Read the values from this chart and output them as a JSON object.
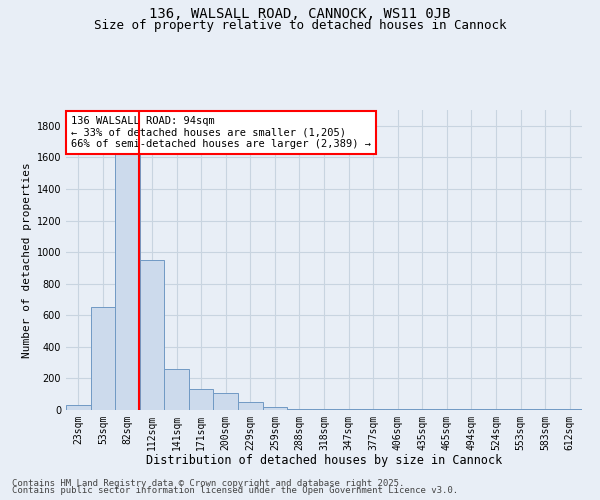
{
  "title": "136, WALSALL ROAD, CANNOCK, WS11 0JB",
  "subtitle": "Size of property relative to detached houses in Cannock",
  "xlabel": "Distribution of detached houses by size in Cannock",
  "ylabel": "Number of detached properties",
  "categories": [
    "23sqm",
    "53sqm",
    "82sqm",
    "112sqm",
    "141sqm",
    "171sqm",
    "200sqm",
    "229sqm",
    "259sqm",
    "288sqm",
    "318sqm",
    "347sqm",
    "377sqm",
    "406sqm",
    "435sqm",
    "465sqm",
    "494sqm",
    "524sqm",
    "553sqm",
    "583sqm",
    "612sqm"
  ],
  "values": [
    30,
    650,
    1680,
    950,
    260,
    130,
    110,
    50,
    20,
    5,
    5,
    5,
    5,
    5,
    5,
    5,
    5,
    5,
    5,
    5,
    5
  ],
  "bar_color": "#ccdaec",
  "bar_edge_color": "#7099c4",
  "vline_color": "red",
  "annotation_text": "136 WALSALL ROAD: 94sqm\n← 33% of detached houses are smaller (1,205)\n66% of semi-detached houses are larger (2,389) →",
  "annotation_box_color": "white",
  "annotation_box_edge": "red",
  "ylim": [
    0,
    1900
  ],
  "yticks": [
    0,
    200,
    400,
    600,
    800,
    1000,
    1200,
    1400,
    1600,
    1800
  ],
  "bg_color": "#e8eef6",
  "grid_color": "#c8d4e0",
  "footer_line1": "Contains HM Land Registry data © Crown copyright and database right 2025.",
  "footer_line2": "Contains public sector information licensed under the Open Government Licence v3.0.",
  "title_fontsize": 10,
  "subtitle_fontsize": 9,
  "xlabel_fontsize": 8.5,
  "ylabel_fontsize": 8,
  "tick_fontsize": 7,
  "footer_fontsize": 6.5,
  "annotation_fontsize": 7.5
}
